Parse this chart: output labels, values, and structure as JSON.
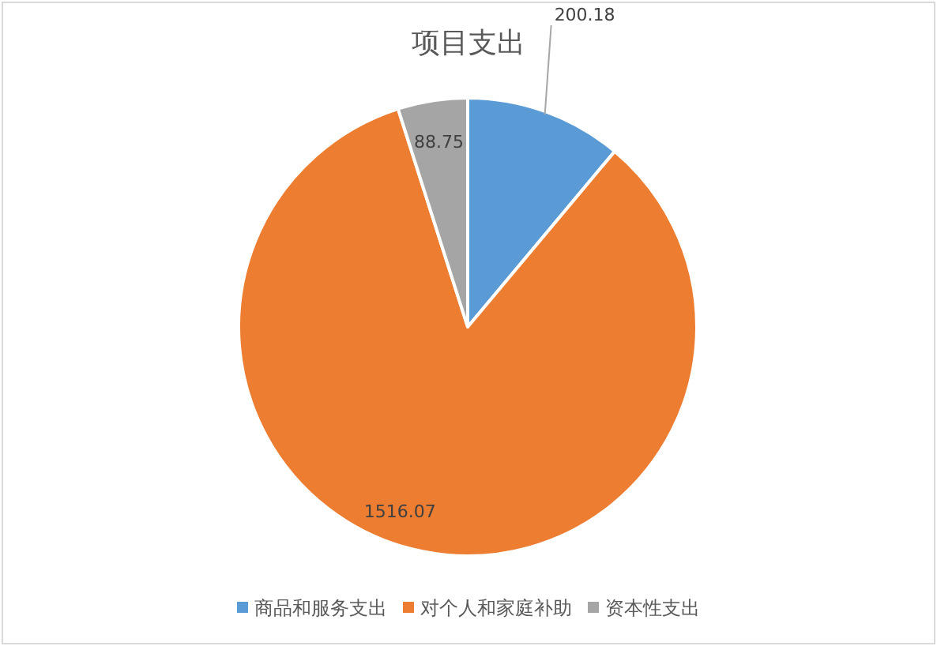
{
  "chart_data": {
    "type": "pie",
    "title": "项目支出",
    "categories": [
      "商品和服务支出",
      "对个人和家庭补助",
      "资本性支出"
    ],
    "values": [
      200.18,
      1516.07,
      88.75
    ],
    "colors": [
      "#5b9bd5",
      "#ed7d31",
      "#a5a5a5"
    ],
    "data_labels": true,
    "legend": "bottom"
  }
}
